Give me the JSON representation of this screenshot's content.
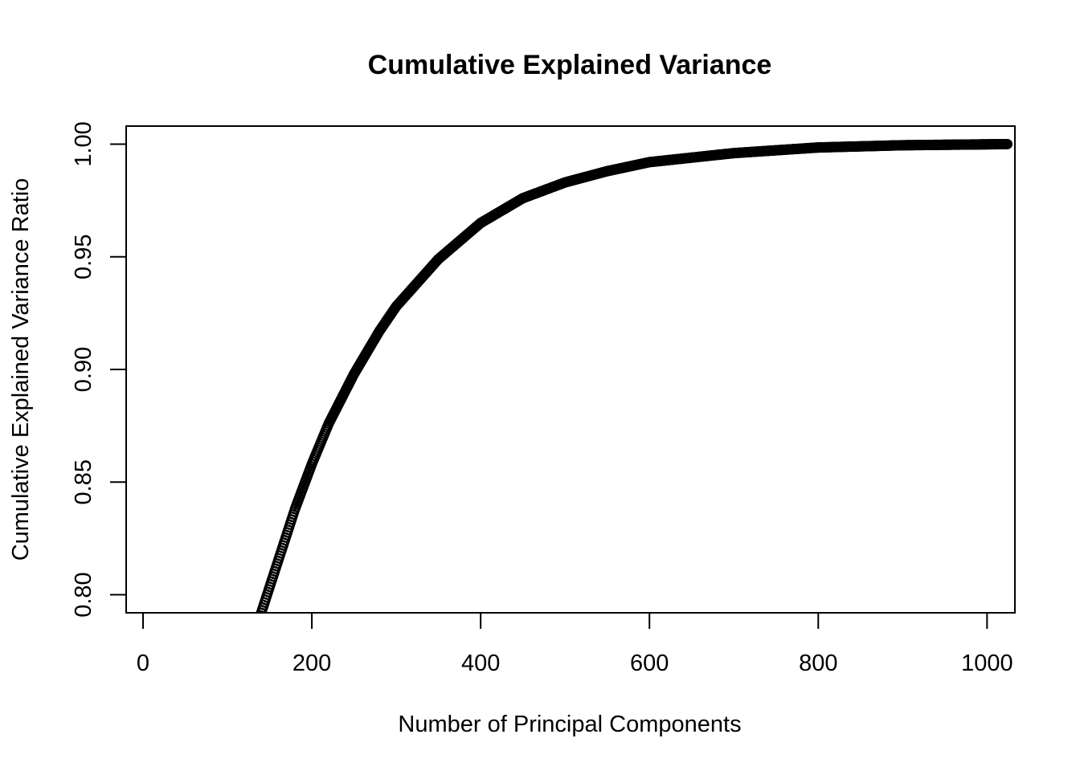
{
  "chart_data": {
    "type": "scatter",
    "title": "Cumulative Explained Variance",
    "xlabel": "Number of Principal Components",
    "ylabel": "Cumulative Explained Variance Ratio",
    "xlim": [
      -20,
      1033
    ],
    "ylim": [
      0.792,
      1.008
    ],
    "x_ticks": [
      0,
      200,
      400,
      600,
      800,
      1000
    ],
    "y_ticks": [
      0.8,
      0.85,
      0.9,
      0.95,
      1.0
    ],
    "x_tick_labels": [
      "0",
      "200",
      "400",
      "600",
      "800",
      "1000"
    ],
    "y_tick_labels": [
      "0.80",
      "0.85",
      "0.90",
      "0.95",
      "1.00"
    ],
    "grid": false,
    "marker": "open-circle",
    "color": "#000000",
    "series": [
      {
        "x_range": [
          1,
          1024
        ],
        "x": [
          140,
          160,
          180,
          200,
          220,
          250,
          280,
          300,
          350,
          400,
          450,
          500,
          550,
          600,
          700,
          800,
          900,
          1024
        ],
        "y": [
          0.792,
          0.815,
          0.838,
          0.858,
          0.876,
          0.898,
          0.917,
          0.928,
          0.949,
          0.965,
          0.976,
          0.983,
          0.988,
          0.992,
          0.996,
          0.9985,
          0.9995,
          1.0
        ]
      }
    ]
  }
}
